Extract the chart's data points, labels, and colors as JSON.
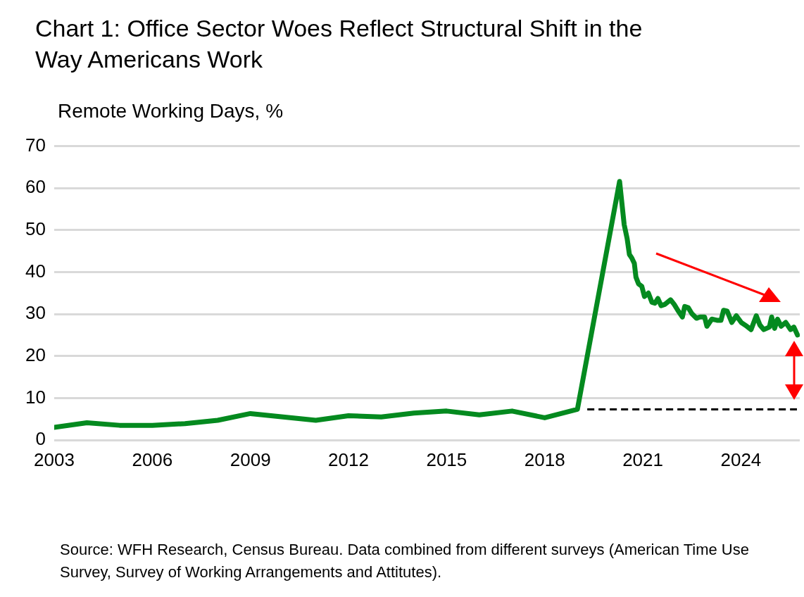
{
  "chart_data": {
    "type": "line",
    "title": "Chart 1: Office Sector Woes Reflect Structural Shift in the Way Americans Work",
    "ylabel": "Remote Working Days, %",
    "series": [
      {
        "color": "#048a1f",
        "x": [
          2003,
          2004,
          2005,
          2006,
          2007,
          2008,
          2009,
          2010,
          2011,
          2012,
          2013,
          2014,
          2015,
          2016,
          2017,
          2018,
          2019,
          2020.29,
          2020.43,
          2020.52,
          2020.59,
          2020.66,
          2020.74,
          2020.79,
          2020.87,
          2020.97,
          2021.05,
          2021.17,
          2021.28,
          2021.37,
          2021.46,
          2021.56,
          2021.67,
          2021.85,
          2021.96,
          2022.07,
          2022.21,
          2022.28,
          2022.39,
          2022.5,
          2022.64,
          2022.75,
          2022.89,
          2022.96,
          2023.11,
          2023.29,
          2023.39,
          2023.47,
          2023.58,
          2023.72,
          2023.86,
          2024.01,
          2024.18,
          2024.31,
          2024.47,
          2024.58,
          2024.7,
          2024.87,
          2024.94,
          2025.03,
          2025.12,
          2025.23,
          2025.37,
          2025.52,
          2025.62,
          2025.73
        ],
        "values": [
          3.0,
          4.1,
          3.5,
          3.5,
          3.9,
          4.7,
          6.3,
          5.5,
          4.7,
          5.8,
          5.5,
          6.4,
          6.9,
          6.0,
          6.9,
          5.3,
          7.3,
          61.6,
          51.3,
          48.0,
          44.2,
          43.4,
          42.1,
          38.8,
          37.2,
          36.6,
          34.2,
          35.0,
          32.8,
          32.6,
          33.7,
          32.0,
          32.3,
          33.4,
          32.3,
          30.9,
          29.3,
          31.8,
          31.5,
          30.1,
          29.0,
          29.3,
          29.3,
          27.1,
          28.8,
          28.5,
          28.5,
          30.9,
          30.7,
          28.0,
          29.6,
          28.0,
          27.1,
          26.3,
          29.6,
          27.4,
          26.3,
          26.9,
          29.3,
          26.6,
          28.8,
          27.1,
          28.0,
          26.3,
          26.9,
          25.0
        ]
      }
    ],
    "xlim": [
      2003,
      2025.8
    ],
    "xticks": [
      2003,
      2006,
      2009,
      2012,
      2015,
      2018,
      2021,
      2024
    ],
    "ylim": [
      0,
      70
    ],
    "yticks": [
      0,
      10,
      20,
      30,
      40,
      50,
      60,
      70
    ],
    "grid": "y",
    "legend": false,
    "marker": "none",
    "line_style": "solid",
    "ref_lines": [
      {
        "axis": "y",
        "value": 7.3,
        "color": "#000000",
        "line_style": "dashed"
      }
    ],
    "annotations": [
      "Source: WFH Research, Census Bureau. Data combined from different surveys (American Time Use Survey, Survey of Working Arrangements and Attitutes)."
    ]
  }
}
